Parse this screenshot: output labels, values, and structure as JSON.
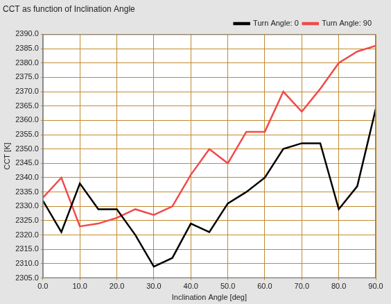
{
  "chart_data": {
    "type": "line",
    "title": "CCT as function of Inclination Angle",
    "x_label": "Inclination Angle [deg]",
    "y_label": "CCT [K]",
    "x": [
      0,
      5,
      10,
      15,
      20,
      25,
      30,
      35,
      40,
      45,
      50,
      55,
      60,
      65,
      70,
      75,
      80,
      85,
      90
    ],
    "series": [
      {
        "name": "Turn Angle: 0",
        "color": "#000000",
        "line_style": "solid",
        "marker": "none",
        "values": [
          2332,
          2321,
          2338,
          2329,
          2329,
          2320,
          2309,
          2312,
          2324,
          2321,
          2331,
          2335,
          2340,
          2350,
          2352,
          2352,
          2329,
          2337,
          2364
        ]
      },
      {
        "name": "Turn Angle: 90",
        "color": "#f04a4a",
        "line_style": "solid",
        "marker": "none",
        "values": [
          2333,
          2340,
          2323,
          2324,
          2326,
          2329,
          2327,
          2330,
          2341,
          2350,
          2345,
          2356,
          2356,
          2370,
          2363,
          2371,
          2380,
          2384,
          2386
        ]
      }
    ],
    "xlim": [
      0,
      90
    ],
    "xticks": [
      {
        "value": 0,
        "label": "0.0"
      },
      {
        "value": 10,
        "label": "10.0"
      },
      {
        "value": 20,
        "label": "20.0"
      },
      {
        "value": 30,
        "label": "30.0"
      },
      {
        "value": 40,
        "label": "40.0"
      },
      {
        "value": 50,
        "label": "50.0"
      },
      {
        "value": 60,
        "label": "60.0"
      },
      {
        "value": 70,
        "label": "70.0"
      },
      {
        "value": 80,
        "label": "80.0"
      },
      {
        "value": 90,
        "label": "90.0"
      }
    ],
    "ylim": [
      2305,
      2390
    ],
    "yticks": [
      {
        "value": 2305,
        "label": "2305.0"
      },
      {
        "value": 2310,
        "label": "2310.0"
      },
      {
        "value": 2315,
        "label": "2315.0"
      },
      {
        "value": 2320,
        "label": "2320.0"
      },
      {
        "value": 2325,
        "label": "2325.0"
      },
      {
        "value": 2330,
        "label": "2330.0"
      },
      {
        "value": 2335,
        "label": "2335.0"
      },
      {
        "value": 2340,
        "label": "2340.0"
      },
      {
        "value": 2345,
        "label": "2345.0"
      },
      {
        "value": 2350,
        "label": "2350.0"
      },
      {
        "value": 2355,
        "label": "2355.0"
      },
      {
        "value": 2360,
        "label": "2360.0"
      },
      {
        "value": 2365,
        "label": "2365.0"
      },
      {
        "value": 2370,
        "label": "2370.0"
      },
      {
        "value": 2375,
        "label": "2375.0"
      },
      {
        "value": 2380,
        "label": "2380.0"
      },
      {
        "value": 2385,
        "label": "2385.0"
      },
      {
        "value": 2390,
        "label": "2390.0"
      }
    ],
    "grid": true,
    "legend": "top right"
  }
}
